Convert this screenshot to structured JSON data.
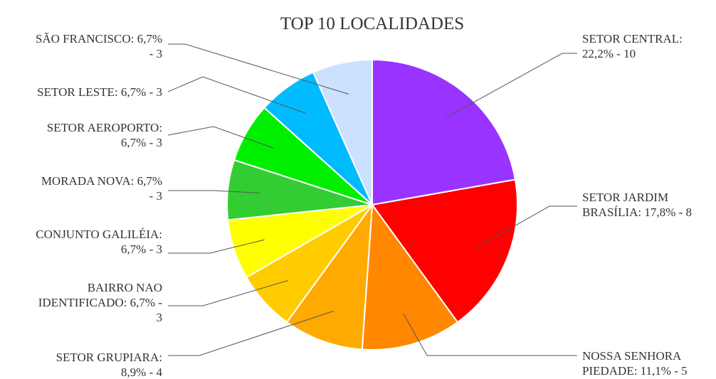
{
  "chart_data": {
    "type": "pie",
    "title": "TOP 10 LOCALIDADES",
    "slices": [
      {
        "label": [
          "SETOR CENTRAL:",
          "22,2% - 10"
        ],
        "value": 10,
        "percent": 22.2,
        "color": "#9933ff"
      },
      {
        "label": [
          "SETOR JARDIM",
          "BRASÍLIA: 17,8% - 8"
        ],
        "value": 8,
        "percent": 17.8,
        "color": "#ff0000"
      },
      {
        "label": [
          "NOSSA SENHORA",
          "PIEDADE: 11,1% - 5"
        ],
        "value": 5,
        "percent": 11.1,
        "color": "#ff8800"
      },
      {
        "label": [
          "SETOR GRUPIARA:",
          "8,9% - 4"
        ],
        "value": 4,
        "percent": 8.9,
        "color": "#ffaa00"
      },
      {
        "label": [
          "BAIRRO NAO",
          "IDENTIFICADO: 6,7% -",
          "3"
        ],
        "value": 3,
        "percent": 6.7,
        "color": "#ffcc00"
      },
      {
        "label": [
          "CONJUNTO GALILÉIA:",
          "6,7% - 3"
        ],
        "value": 3,
        "percent": 6.7,
        "color": "#ffff00"
      },
      {
        "label": [
          "MORADA NOVA: 6,7%",
          "- 3"
        ],
        "value": 3,
        "percent": 6.7,
        "color": "#33cc33"
      },
      {
        "label": [
          "SETOR AEROPORTO:",
          "6,7% - 3"
        ],
        "value": 3,
        "percent": 6.7,
        "color": "#00ee00"
      },
      {
        "label": [
          "SETOR LESTE: 6,7% - 3"
        ],
        "value": 3,
        "percent": 6.7,
        "color": "#00bbff"
      },
      {
        "label": [
          "SÃO FRANCISCO: 6,7%",
          "- 3"
        ],
        "value": 3,
        "percent": 6.7,
        "color": "#cce0ff"
      }
    ]
  }
}
